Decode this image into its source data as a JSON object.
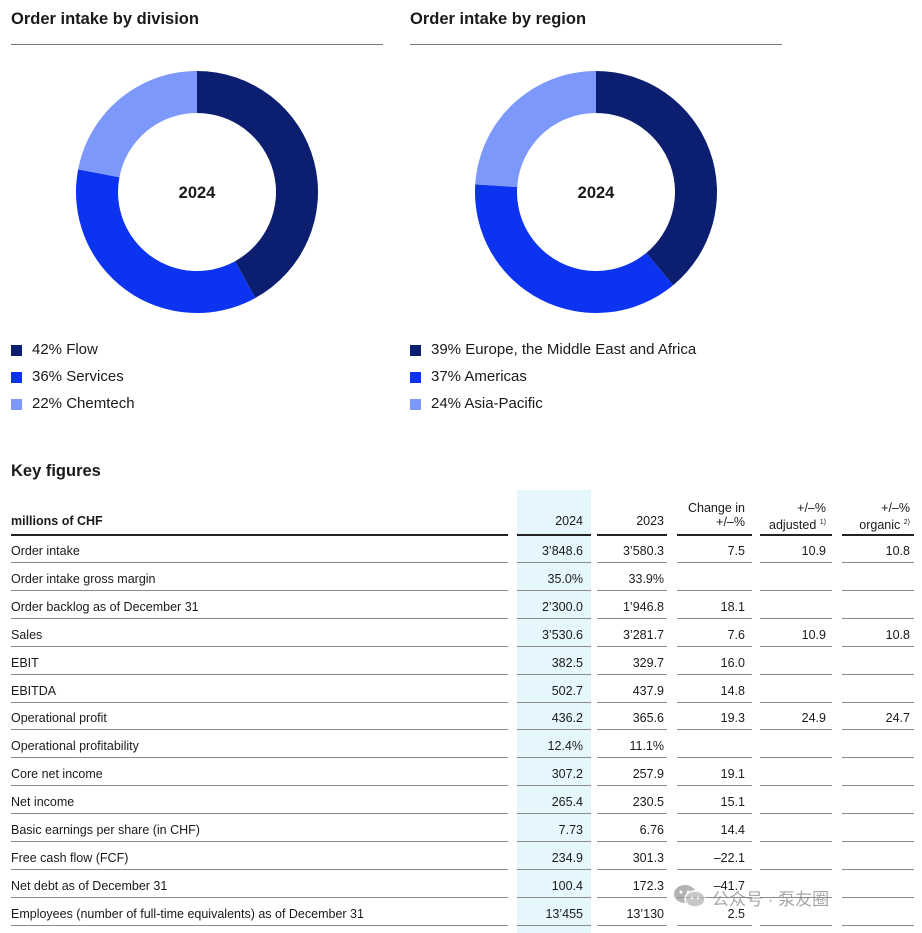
{
  "colors": {
    "flow_dark": "#0c1e70",
    "services_blue": "#0b33f0",
    "chemtech_light": "#7d98fb",
    "highlight": "#e5f6fd"
  },
  "division": {
    "title": "Order intake by division",
    "center_label": "2024",
    "items": [
      {
        "label": "42% Flow",
        "value": 42,
        "color": "#0c1e70"
      },
      {
        "label": "36% Services",
        "value": 36,
        "color": "#0b33f0"
      },
      {
        "label": "22% Chemtech",
        "value": 22,
        "color": "#7d98fb"
      }
    ]
  },
  "region": {
    "title": "Order intake by region",
    "center_label": "2024",
    "items": [
      {
        "label": "39% Europe, the Middle East and Africa",
        "value": 39,
        "color": "#0c1e70"
      },
      {
        "label": "37% Americas",
        "value": 37,
        "color": "#0b33f0"
      },
      {
        "label": "24% Asia-Pacific",
        "value": 24,
        "color": "#7d98fb"
      }
    ]
  },
  "chart_data": [
    {
      "type": "pie",
      "title": "Order intake by division",
      "center_label": "2024",
      "categories": [
        "Flow",
        "Services",
        "Chemtech"
      ],
      "values": [
        42,
        36,
        22
      ]
    },
    {
      "type": "pie",
      "title": "Order intake by region",
      "center_label": "2024",
      "categories": [
        "Europe, the Middle East and Africa",
        "Americas",
        "Asia-Pacific"
      ],
      "values": [
        39,
        37,
        24
      ]
    }
  ],
  "key_figures": {
    "title": "Key figures",
    "headers": {
      "label": "millions of CHF",
      "y2024": "2024",
      "y2023": "2023",
      "change_l1": "Change in",
      "change_l2": "+/–%",
      "adj_l1": "+/–%",
      "adj_l2": "adjusted",
      "adj_note": "1)",
      "org_l1": "+/–%",
      "org_l2": "organic",
      "org_note": "2)"
    },
    "rows": [
      {
        "label": "Order intake",
        "y2024": "3’848.6",
        "y2023": "3’580.3",
        "change": "7.5",
        "adjusted": "10.9",
        "organic": "10.8"
      },
      {
        "label": "Order intake gross margin",
        "y2024": "35.0%",
        "y2023": "33.9%",
        "change": "",
        "adjusted": "",
        "organic": ""
      },
      {
        "label": "Order backlog as of December 31",
        "y2024": "2’300.0",
        "y2023": "1’946.8",
        "change": "18.1",
        "adjusted": "",
        "organic": ""
      },
      {
        "label": "Sales",
        "y2024": "3’530.6",
        "y2023": "3’281.7",
        "change": "7.6",
        "adjusted": "10.9",
        "organic": "10.8"
      },
      {
        "label": "EBIT",
        "y2024": "382.5",
        "y2023": "329.7",
        "change": "16.0",
        "adjusted": "",
        "organic": ""
      },
      {
        "label": "EBITDA",
        "y2024": "502.7",
        "y2023": "437.9",
        "change": "14.8",
        "adjusted": "",
        "organic": ""
      },
      {
        "label": "Operational profit",
        "y2024": "436.2",
        "y2023": "365.6",
        "change": "19.3",
        "adjusted": "24.9",
        "organic": "24.7"
      },
      {
        "label": "Operational profitability",
        "y2024": "12.4%",
        "y2023": "11.1%",
        "change": "",
        "adjusted": "",
        "organic": ""
      },
      {
        "label": "Core net income",
        "y2024": "307.2",
        "y2023": "257.9",
        "change": "19.1",
        "adjusted": "",
        "organic": ""
      },
      {
        "label": "Net income",
        "y2024": "265.4",
        "y2023": "230.5",
        "change": "15.1",
        "adjusted": "",
        "organic": ""
      },
      {
        "label": "Basic earnings per share (in CHF)",
        "y2024": "7.73",
        "y2023": "6.76",
        "change": "14.4",
        "adjusted": "",
        "organic": ""
      },
      {
        "label": "Free cash flow (FCF)",
        "y2024": "234.9",
        "y2023": "301.3",
        "change": "–22.1",
        "adjusted": "",
        "organic": ""
      },
      {
        "label": "Net debt as of December 31",
        "y2024": "100.4",
        "y2023": "172.3",
        "change": "–41.7",
        "adjusted": "",
        "organic": ""
      },
      {
        "label": "Employees (number of full-time equivalents) as of December 31",
        "y2024": "13’455",
        "y2023": "13’130",
        "change": "2.5",
        "adjusted": "",
        "organic": ""
      }
    ]
  },
  "watermark": {
    "text": "公众号 · 泵友圈",
    "icon": "wechat-icon"
  }
}
